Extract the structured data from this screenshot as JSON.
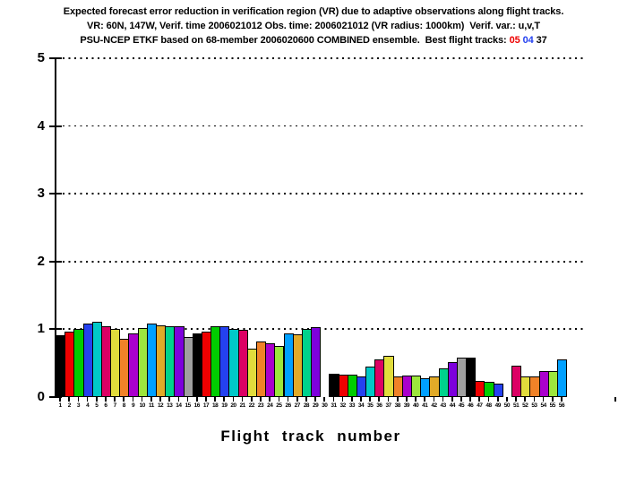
{
  "chart_data": {
    "type": "bar",
    "title": "Expected forecast error reduction in verification region (VR) due to adaptive observations along flight tracks.",
    "subtitle": "VR: 60N, 147W, Verif. time 2006021012 Obs. time: 2006021012 (VR radius: 1000km)  Verif. var.: u,v,T",
    "subtitle2_prefix": "PSU-NCEP ETKF based on 68-member 2006020600 COMBINED ensemble.  Best flight tracks: ",
    "best_flight_tracks": [
      {
        "label": "05",
        "color": "#ee0000"
      },
      {
        "label": "04",
        "color": "#2441f0"
      },
      {
        "label": "37",
        "color": "#000000"
      }
    ],
    "xlabel": "Flight track number",
    "ylabel": "",
    "ylim": [
      0,
      5
    ],
    "yticks": [
      "0",
      "1",
      "2",
      "3",
      "4",
      "5"
    ],
    "grid": "horizontal dotted lines at each integer 1-5",
    "legend": "none",
    "background": "#ffffff",
    "axis_color": "#000000",
    "categories": [
      "1",
      "2",
      "3",
      "4",
      "5",
      "6",
      "7",
      "8",
      "9",
      "10",
      "11",
      "12",
      "13",
      "14",
      "15",
      "16",
      "17",
      "18",
      "19",
      "20",
      "21",
      "22",
      "23",
      "24",
      "25",
      "26",
      "27",
      "28",
      "29",
      "30",
      "31",
      "32",
      "33",
      "34",
      "35",
      "36",
      "37",
      "38",
      "39",
      "40",
      "41",
      "42",
      "43",
      "44",
      "45",
      "46",
      "47",
      "48",
      "49",
      "50",
      "51",
      "52",
      "53",
      "54",
      "55",
      "56"
    ],
    "values": [
      0.91,
      0.97,
      1.0,
      1.08,
      1.11,
      1.05,
      1.01,
      0.86,
      0.94,
      1.02,
      1.08,
      1.06,
      1.04,
      1.04,
      0.89,
      0.94,
      0.97,
      1.05,
      1.05,
      1.01,
      0.99,
      0.71,
      0.82,
      0.8,
      0.76,
      0.94,
      0.92,
      1.0,
      1.03,
      0,
      0.34,
      0.33,
      0.33,
      0.31,
      0.45,
      0.56,
      0.61,
      0.3,
      0.32,
      0.32,
      0.28,
      0.3,
      0.42,
      0.51,
      0.58,
      0.58,
      0.24,
      0.22,
      0.2,
      0,
      0.46,
      0.31,
      0.31,
      0.38,
      0.38,
      0.55
    ],
    "zero_height_tracks": [
      30,
      50
    ],
    "palette": [
      "#000000",
      "#ee0000",
      "#00cc00",
      "#2441f0",
      "#00c8c8",
      "#dc0064",
      "#e1dc3c",
      "#f08228",
      "#aa00cc",
      "#9ce63c",
      "#00a0ff",
      "#e1aa28",
      "#00d28c",
      "#7d00dc",
      "#a0a0a0"
    ],
    "color_rule": "bar fill = palette[(track_number - 1) % 15], black outline"
  }
}
